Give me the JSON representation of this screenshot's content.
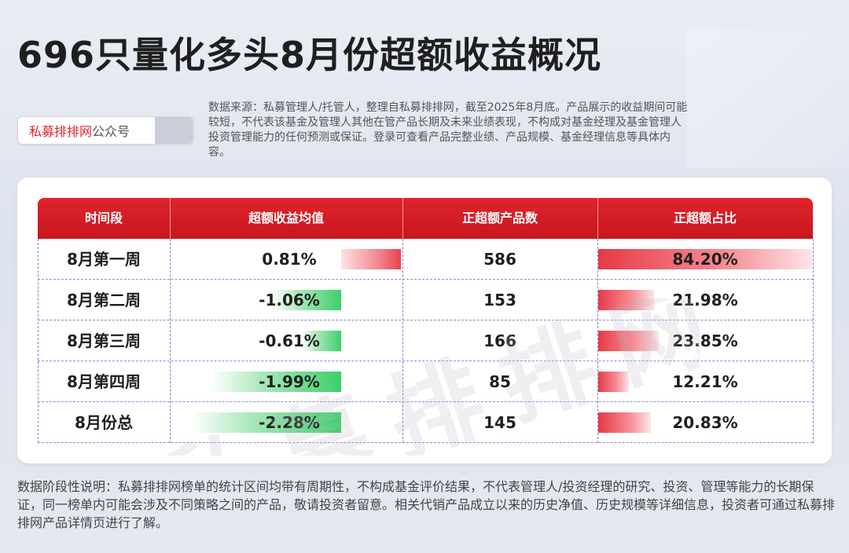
{
  "title": "696只量化多头8月份超额收益概况",
  "account_badge": {
    "brand": "私募排排网",
    "suffix": "公众号"
  },
  "source_note": "数据来源：私募管理人/托管人，整理自私募排排网，截至2025年8月底。产品展示的收益期间可能较短，不代表该基金及管理人其他在管产品长期及未来业绩表现，不构成对基金经理及基金管理人投资管理能力的任何预测或保证。登录可查看产品完整业绩、产品规模、基金经理信息等具体内容。",
  "watermark": "私募排排网",
  "footer_note": "数据阶段性说明：私募排排网榜单的统计区间均带有周期性，不构成基金评价结果，不代表管理人/投资经理的研究、投资、管理等能力的长期保证，同一榜单内可能会涉及不同策略之间的产品，敬请投资者留意。相关代销产品成立以来的历史净值、历史规模等详细信息，投资者可通过私募排排网产品详情页进行了解。",
  "colors": {
    "header_red": "#d41f27",
    "positive_bar": "#e9434e",
    "negative_bar": "#3ccf6a"
  },
  "chart_data": {
    "type": "table",
    "columns": [
      "时间段",
      "超额收益均值",
      "正超额产品数",
      "正超额占比"
    ],
    "rows": [
      {
        "period": "8月第一周",
        "excess_return": 0.81,
        "excess_return_label": "0.81%",
        "positive_count": "586",
        "positive_share": 84.2,
        "positive_share_label": "84.20%"
      },
      {
        "period": "8月第二周",
        "excess_return": -1.06,
        "excess_return_label": "-1.06%",
        "positive_count": "153",
        "positive_share": 21.98,
        "positive_share_label": "21.98%"
      },
      {
        "period": "8月第三周",
        "excess_return": -0.61,
        "excess_return_label": "-0.61%",
        "positive_count": "166",
        "positive_share": 23.85,
        "positive_share_label": "23.85%"
      },
      {
        "period": "8月第四周",
        "excess_return": -1.99,
        "excess_return_label": "-1.99%",
        "positive_count": "85",
        "positive_share": 12.21,
        "positive_share_label": "12.21%"
      },
      {
        "period": "8月份总",
        "excess_return": -2.28,
        "excess_return_label": "-2.28%",
        "positive_count": "145",
        "positive_share": 20.83,
        "positive_share_label": "20.83%"
      }
    ]
  }
}
